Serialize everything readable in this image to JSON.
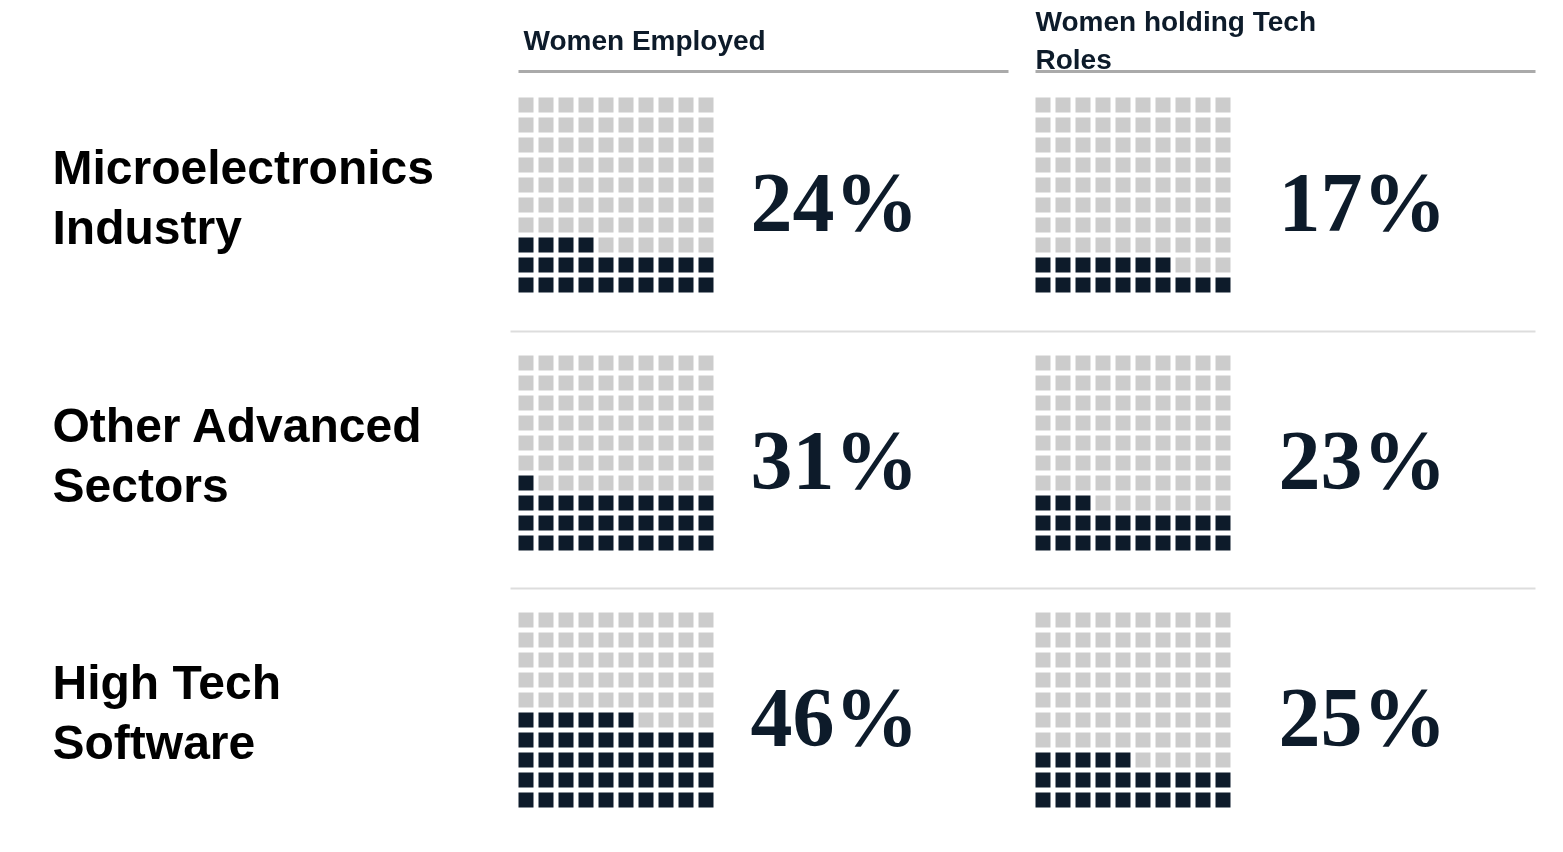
{
  "chart_data": {
    "type": "other",
    "categories": [
      "Microelectronics Industry",
      "Other Advanced Sectors",
      "High Tech Software"
    ],
    "series": [
      {
        "name": "Women Employed",
        "color": "#0d1b2a",
        "values": [
          24,
          31,
          46
        ],
        "value_labels": [
          "24%",
          "31%",
          "46%"
        ]
      },
      {
        "name": "Women holding Tech Roles",
        "color": "#0d1b2a",
        "values": [
          17,
          23,
          25
        ],
        "value_labels": [
          "17%",
          "23%",
          "25%"
        ]
      }
    ]
  }
}
